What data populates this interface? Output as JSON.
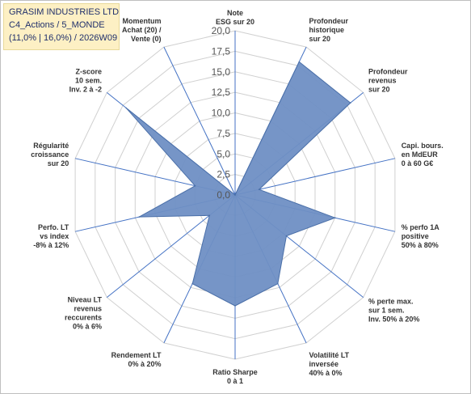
{
  "title_box": {
    "line1": "GRASIM INDUSTRIES LTD",
    "line2": "C4_Actions / 5_MONDE",
    "line3": "(11,0% | 16,0%) / 2026W09"
  },
  "colors": {
    "fill": "#6f8fc4",
    "stroke": "#4a6fa8",
    "axis": "#4472c4",
    "grid": "#d0d0d0",
    "title_bg": "#fdf0c4"
  },
  "chart_data": {
    "type": "radar",
    "r_range": [
      0,
      20
    ],
    "tick_labels": [
      "0,0",
      "2,5",
      "5,0",
      "7,5",
      "10,0",
      "12,5",
      "15,0",
      "17,5",
      "20,0"
    ],
    "grid": true,
    "axes": [
      {
        "lines": [
          "Note",
          "ESG sur 20"
        ],
        "value": 0
      },
      {
        "lines": [
          "Profondeur",
          "historique",
          "sur 20"
        ],
        "value": 18
      },
      {
        "lines": [
          "Profondeur",
          "revenus",
          "sur 20"
        ],
        "value": 18
      },
      {
        "lines": [
          "Capi. bours.",
          "en MdEUR",
          "0 à 60 G€"
        ],
        "value": 3
      },
      {
        "lines": [
          "% perfo 1A",
          "positive",
          "50% à 80%"
        ],
        "value": 12.5
      },
      {
        "lines": [
          "% perte max.",
          "sur 1 sem.",
          "Inv. 50% à 20%"
        ],
        "value": 8
      },
      {
        "lines": [
          "Volatilité LT",
          "inversée",
          "40% à 0%"
        ],
        "value": 12
      },
      {
        "lines": [
          "Ratio Sharpe",
          "0 à 1"
        ],
        "value": 13.5
      },
      {
        "lines": [
          "Rendement LT",
          "0% à 20%"
        ],
        "value": 12
      },
      {
        "lines": [
          "Niveau LT",
          "revenus",
          "reccurents",
          "0% à 6%"
        ],
        "value": 4
      },
      {
        "lines": [
          "Perfo. LT",
          "vs index",
          "-8% à 12%"
        ],
        "value": 12
      },
      {
        "lines": [
          "Régularité",
          "croissance",
          "sur 20"
        ],
        "value": 5
      },
      {
        "lines": [
          "Z-score",
          "10 sem.",
          "Inv. 2 à -2"
        ],
        "value": 17
      },
      {
        "lines": [
          "Momentum",
          "Achat (20) /",
          "Vente (0)"
        ],
        "value": 0
      }
    ]
  }
}
